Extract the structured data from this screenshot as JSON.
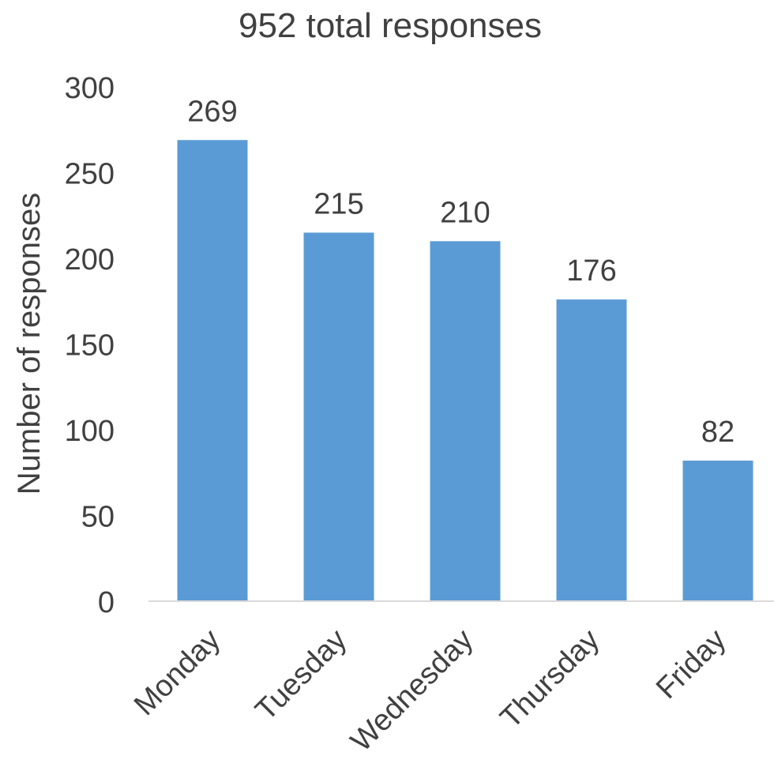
{
  "chart_data": {
    "type": "bar",
    "title": "952 total responses",
    "xlabel": "",
    "ylabel": "Number of responses",
    "categories": [
      "Monday",
      "Tuesday",
      "Wednesday",
      "Thursday",
      "Friday"
    ],
    "values": [
      269,
      215,
      210,
      176,
      82
    ],
    "data_labels": [
      "269",
      "215",
      "210",
      "176",
      "82"
    ],
    "ylim": [
      0,
      300
    ],
    "yticks": [
      0,
      50,
      100,
      150,
      200,
      250,
      300
    ],
    "ytick_labels": [
      "0",
      "50",
      "100",
      "150",
      "200",
      "250",
      "300"
    ],
    "grid": false,
    "legend": "none",
    "colors": {
      "bar": "#5b9bd5",
      "text": "#404040",
      "axis": "#d9d9d9"
    }
  }
}
